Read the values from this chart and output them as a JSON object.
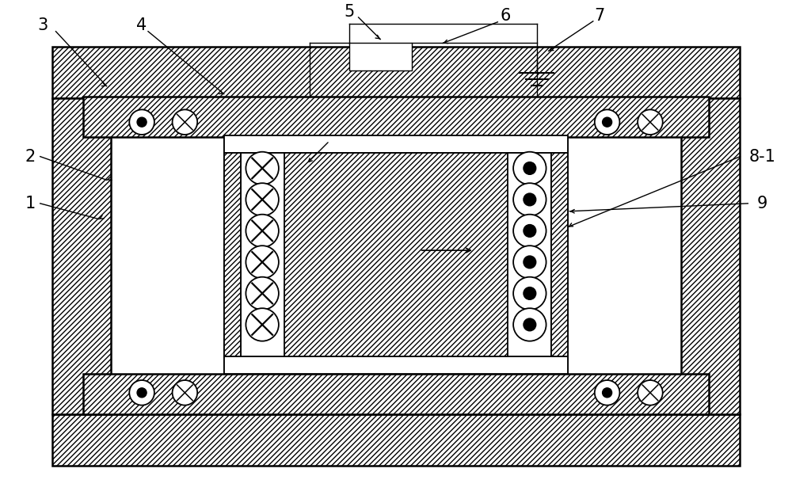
{
  "bg_color": "#ffffff",
  "lw_thick": 1.8,
  "lw_med": 1.3,
  "lw_thin": 1.0,
  "label_fontsize": 15,
  "fig_width": 10.0,
  "fig_height": 6.25
}
